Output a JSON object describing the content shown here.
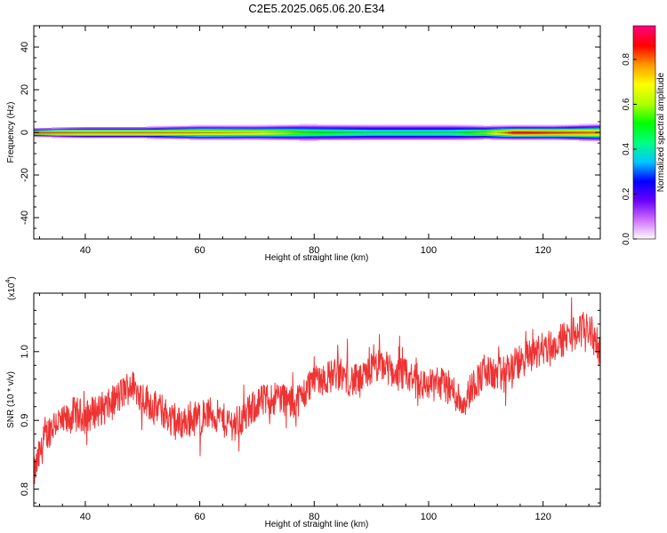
{
  "title": "C2E5.2025.065.06.20.E34",
  "chart_data": [
    {
      "type": "heatmap",
      "xlabel": "Height of straight line (km)",
      "ylabel": "Frequency (Hz)",
      "xlim": [
        31,
        130
      ],
      "ylim": [
        -50,
        50
      ],
      "x_ticks": [
        40,
        60,
        80,
        100,
        120
      ],
      "y_ticks": [
        40,
        20,
        0,
        -20,
        -40
      ],
      "y_tick_labels": [
        "40",
        "20",
        "0",
        "-20",
        "-40"
      ],
      "colorbar": {
        "label": "Normalized spectral amplitude",
        "range": [
          0,
          0.95
        ],
        "ticks": [
          0.0,
          0.2,
          0.4,
          0.6,
          0.8
        ],
        "tick_labels": [
          "0.0",
          "0.2",
          "0.4",
          "0.6",
          "0.8"
        ],
        "colors": [
          "#ffffff",
          "#d070ff",
          "#6a00ff",
          "#0000ff",
          "#00c8ff",
          "#00ff80",
          "#00ff00",
          "#b0ff00",
          "#ffff00",
          "#ff9900",
          "#ff0000",
          "#ff0080"
        ]
      },
      "band": [
        {
          "x": 31,
          "half_width": 1.5,
          "peak": 0.85
        },
        {
          "x": 40,
          "half_width": 2.0,
          "peak": 0.8
        },
        {
          "x": 50,
          "half_width": 2.0,
          "peak": 0.8
        },
        {
          "x": 60,
          "half_width": 2.5,
          "peak": 0.78
        },
        {
          "x": 70,
          "half_width": 2.5,
          "peak": 0.72
        },
        {
          "x": 78,
          "half_width": 3.0,
          "peak": 0.55
        },
        {
          "x": 84,
          "half_width": 3.0,
          "peak": 0.5
        },
        {
          "x": 90,
          "half_width": 3.0,
          "peak": 0.45
        },
        {
          "x": 96,
          "half_width": 3.0,
          "peak": 0.45
        },
        {
          "x": 104,
          "half_width": 3.0,
          "peak": 0.45
        },
        {
          "x": 110,
          "half_width": 2.5,
          "peak": 0.6
        },
        {
          "x": 115,
          "half_width": 2.5,
          "peak": 0.9
        },
        {
          "x": 122,
          "half_width": 2.5,
          "peak": 0.85
        },
        {
          "x": 130,
          "half_width": 3.0,
          "peak": 0.8
        }
      ]
    },
    {
      "type": "line",
      "xlabel": "Height of straight line (km)",
      "ylabel": "SNR (10 * v/v)",
      "y_multiplier_label": "(x10",
      "y_multiplier_exp": "4",
      "y_multiplier_close": ")",
      "xlim": [
        31,
        130
      ],
      "ylim": [
        0.775,
        1.085
      ],
      "x_ticks": [
        40,
        60,
        80,
        100,
        120
      ],
      "y_ticks": [
        0.8,
        0.9,
        1.0
      ],
      "y_tick_labels": [
        "0.8",
        "0.9",
        "1.0"
      ],
      "line_color": "#ee3333",
      "series": [
        {
          "x": [
            31,
            32,
            33,
            34,
            35,
            36,
            37,
            38,
            40,
            42,
            44,
            46,
            47,
            48,
            49,
            50,
            52,
            54,
            56,
            58,
            60,
            62,
            64,
            66,
            68,
            70,
            72,
            74,
            76,
            78,
            80,
            82,
            84,
            86,
            88,
            90,
            92,
            94,
            96,
            98,
            100,
            102,
            104,
            106,
            108,
            110,
            112,
            114,
            116,
            118,
            120,
            122,
            124,
            126,
            128,
            130
          ],
          "y": [
            0.82,
            0.85,
            0.875,
            0.89,
            0.9,
            0.895,
            0.9,
            0.91,
            0.905,
            0.915,
            0.92,
            0.935,
            0.945,
            0.95,
            0.945,
            0.935,
            0.92,
            0.91,
            0.895,
            0.9,
            0.905,
            0.91,
            0.9,
            0.895,
            0.905,
            0.925,
            0.93,
            0.935,
            0.925,
            0.935,
            0.965,
            0.96,
            0.97,
            0.96,
            0.955,
            0.975,
            0.98,
            0.97,
            0.965,
            0.955,
            0.95,
            0.955,
            0.945,
            0.925,
            0.955,
            0.97,
            0.965,
            0.975,
            0.985,
            0.995,
            1.005,
            1.01,
            1.02,
            1.03,
            1.035,
            1.0
          ]
        }
      ]
    }
  ]
}
